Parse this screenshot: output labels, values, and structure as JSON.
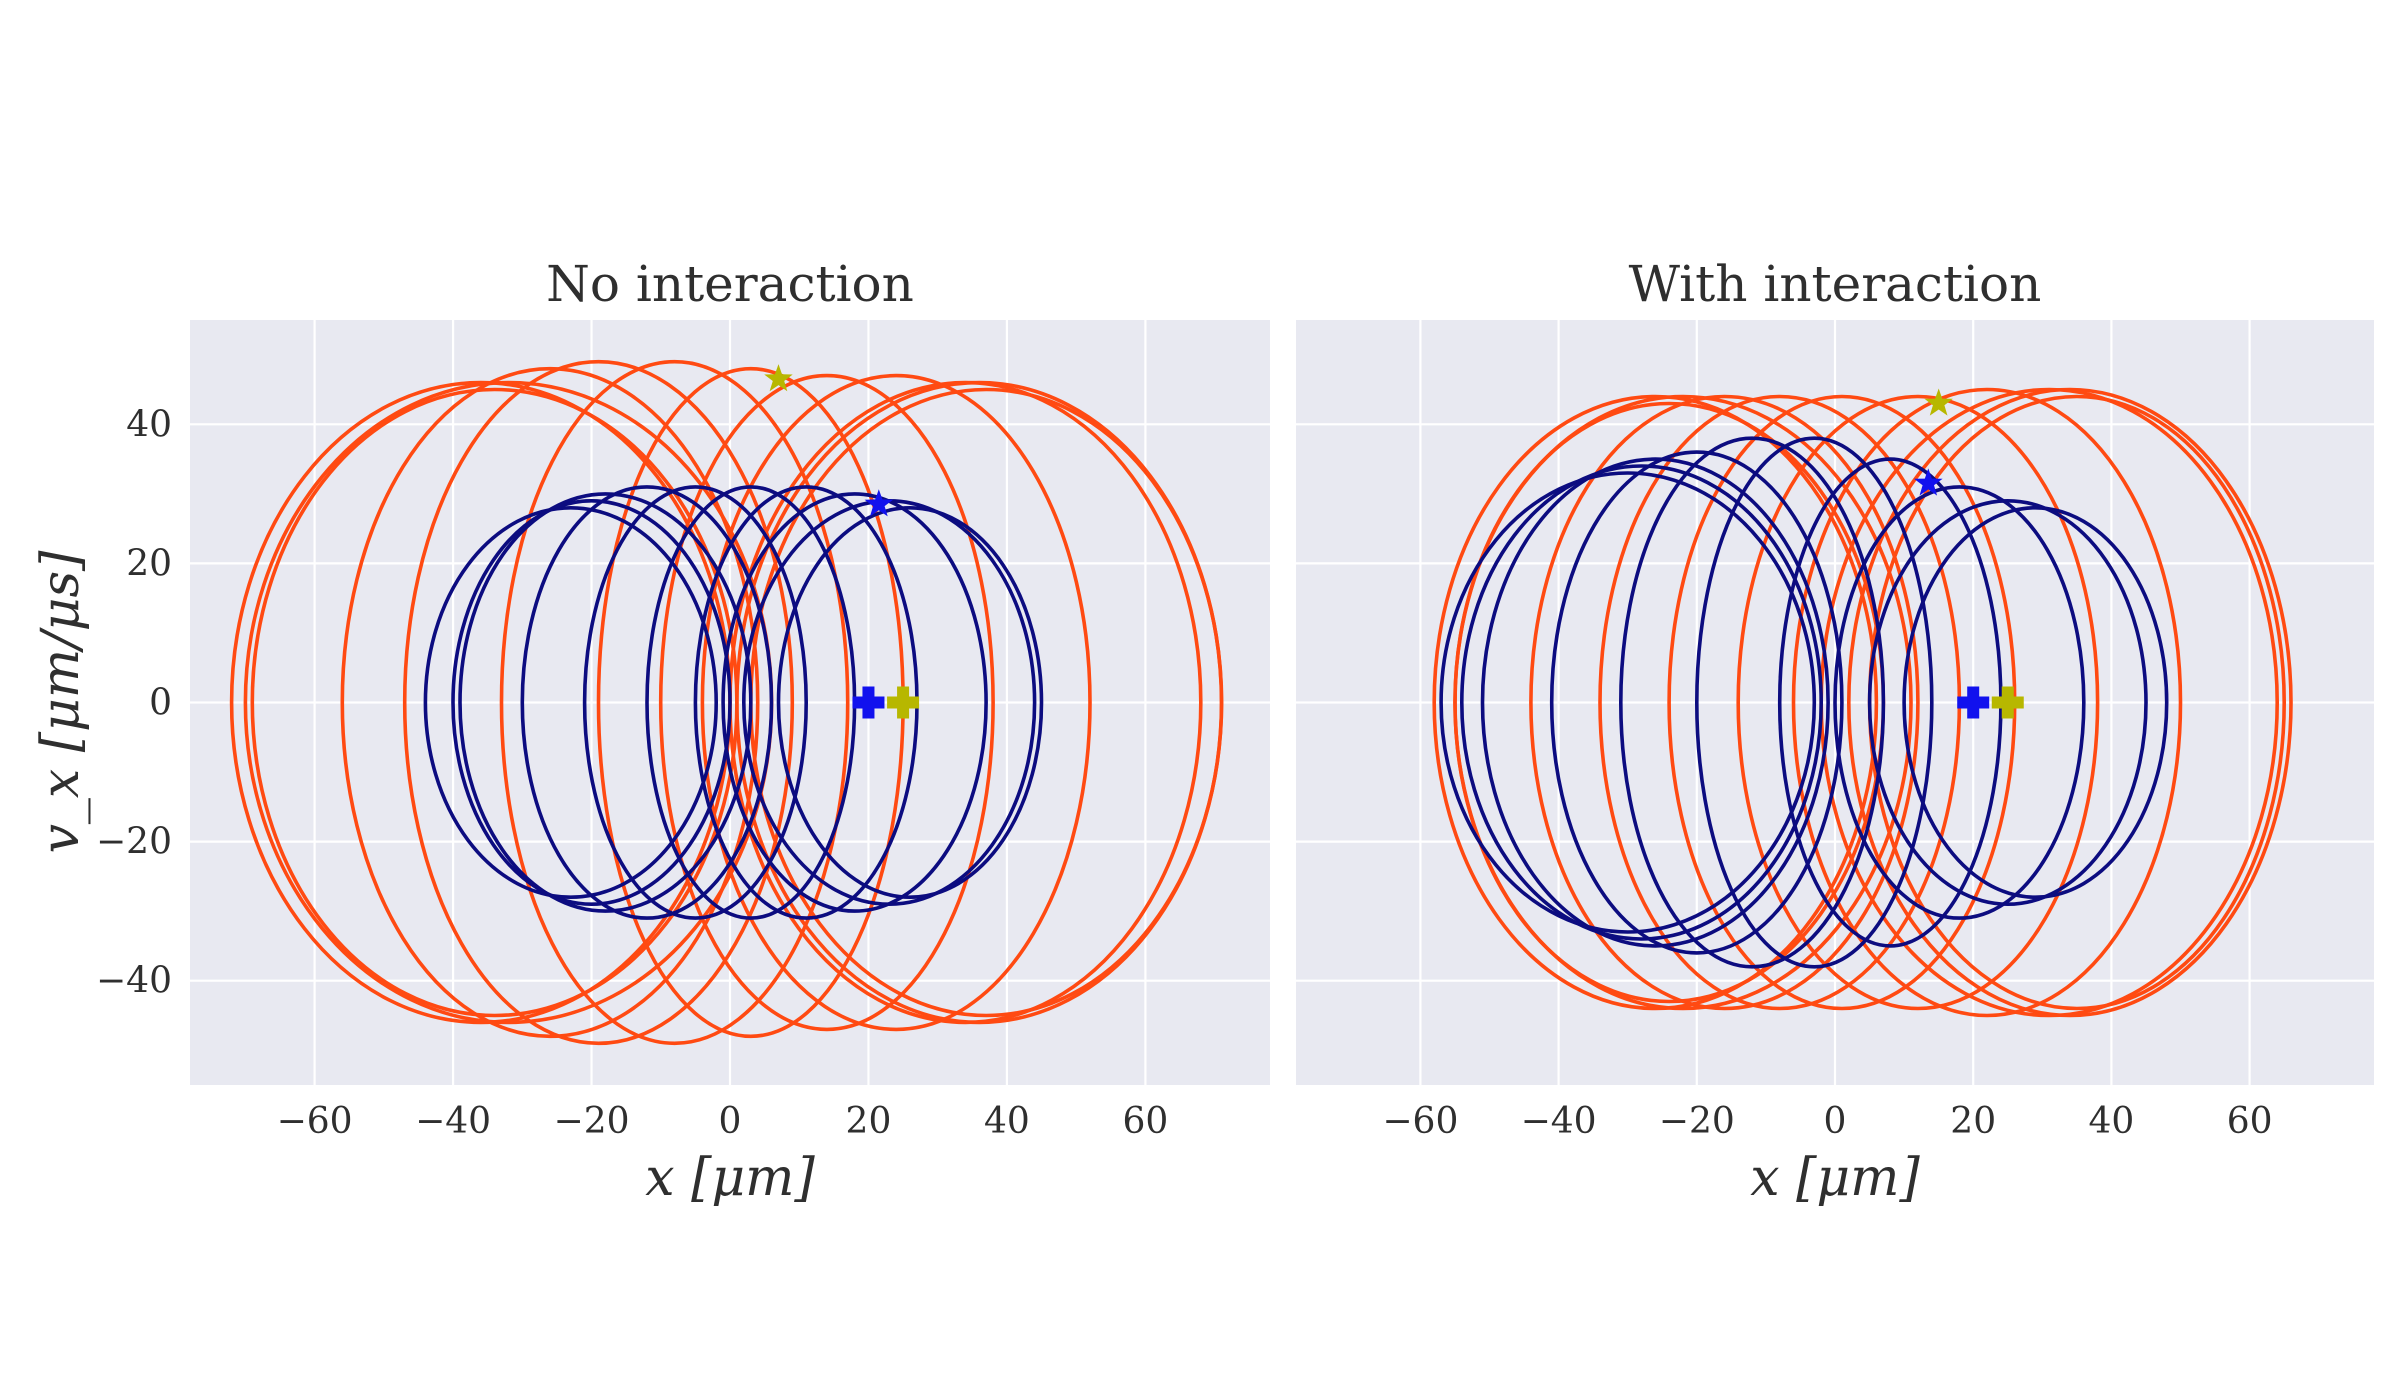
{
  "figure": {
    "background": "#ffffff",
    "plot_background": "#e8e9f1",
    "grid_color": "#ffffff",
    "series_colors": {
      "outer": "#ff4a12",
      "inner": "#0c0c80",
      "marker_yellow": "#b7b700",
      "marker_blue": "#1111ee"
    }
  },
  "chart_data": [
    {
      "type": "line",
      "title": "No interaction",
      "xlabel": "x [μm]",
      "ylabel": "v_x [μm/μs]",
      "xlim": [
        -78,
        78
      ],
      "ylim": [
        -55,
        55
      ],
      "xticks": [
        -60,
        -40,
        -20,
        0,
        20,
        40,
        60
      ],
      "yticks": [
        -40,
        -20,
        0,
        20,
        40
      ],
      "xtick_labels": [
        "−60",
        "−40",
        "−20",
        "0",
        "20",
        "40",
        "60"
      ],
      "ytick_labels": [
        "−40",
        "−20",
        "0",
        "20",
        "40"
      ],
      "grid": true,
      "series": [
        {
          "color": "#ff4a12",
          "style": "phase-space ellipses",
          "ellipses": [
            {
              "center_x": -36,
              "amplitude_x": 36,
              "amplitude_v": 46
            },
            {
              "center_x": -34,
              "amplitude_x": 35,
              "amplitude_v": 45
            },
            {
              "center_x": -32,
              "amplitude_x": 38,
              "amplitude_v": 46
            },
            {
              "center_x": -26,
              "amplitude_x": 30,
              "amplitude_v": 48
            },
            {
              "center_x": -19,
              "amplitude_x": 28,
              "amplitude_v": 49
            },
            {
              "center_x": -8,
              "amplitude_x": 25,
              "amplitude_v": 49
            },
            {
              "center_x": 3,
              "amplitude_x": 22,
              "amplitude_v": 48
            },
            {
              "center_x": 14,
              "amplitude_x": 24,
              "amplitude_v": 47
            },
            {
              "center_x": 24,
              "amplitude_x": 28,
              "amplitude_v": 47
            },
            {
              "center_x": 34,
              "amplitude_x": 34,
              "amplitude_v": 46
            },
            {
              "center_x": 36,
              "amplitude_x": 35,
              "amplitude_v": 46
            },
            {
              "center_x": 37,
              "amplitude_x": 34,
              "amplitude_v": 45
            }
          ],
          "start": {
            "x": 7,
            "v": 46.5
          },
          "end": {
            "x": 25,
            "v": 0
          }
        },
        {
          "color": "#0c0c80",
          "style": "phase-space ellipses",
          "ellipses": [
            {
              "center_x": -23,
              "amplitude_x": 21,
              "amplitude_v": 28
            },
            {
              "center_x": -20,
              "amplitude_x": 20,
              "amplitude_v": 29
            },
            {
              "center_x": -18,
              "amplitude_x": 21,
              "amplitude_v": 30
            },
            {
              "center_x": -12,
              "amplitude_x": 18,
              "amplitude_v": 31
            },
            {
              "center_x": -5,
              "amplitude_x": 16,
              "amplitude_v": 31
            },
            {
              "center_x": 3,
              "amplitude_x": 15,
              "amplitude_v": 31
            },
            {
              "center_x": 11,
              "amplitude_x": 16,
              "amplitude_v": 31
            },
            {
              "center_x": 18,
              "amplitude_x": 19,
              "amplitude_v": 30
            },
            {
              "center_x": 23,
              "amplitude_x": 21,
              "amplitude_v": 29
            },
            {
              "center_x": 26,
              "amplitude_x": 19,
              "amplitude_v": 28
            }
          ],
          "start": {
            "x": 21.5,
            "v": 28.5
          },
          "end": {
            "x": 20,
            "v": 0
          }
        }
      ]
    },
    {
      "type": "line",
      "title": "With interaction",
      "xlabel": "x [μm]",
      "ylabel": "",
      "xlim": [
        -78,
        78
      ],
      "ylim": [
        -55,
        55
      ],
      "xticks": [
        -60,
        -40,
        -20,
        0,
        20,
        40,
        60
      ],
      "yticks": [
        -40,
        -20,
        0,
        20,
        40
      ],
      "xtick_labels": [
        "−60",
        "−40",
        "−20",
        "0",
        "20",
        "40",
        "60"
      ],
      "ytick_labels": [],
      "grid": true,
      "series": [
        {
          "color": "#ff4a12",
          "style": "phase-space ellipses",
          "ellipses": [
            {
              "center_x": -26,
              "amplitude_x": 32,
              "amplitude_v": 44
            },
            {
              "center_x": -24,
              "amplitude_x": 31,
              "amplitude_v": 43
            },
            {
              "center_x": -22,
              "amplitude_x": 33,
              "amplitude_v": 44
            },
            {
              "center_x": -16,
              "amplitude_x": 28,
              "amplitude_v": 44
            },
            {
              "center_x": -8,
              "amplitude_x": 26,
              "amplitude_v": 44
            },
            {
              "center_x": 1,
              "amplitude_x": 25,
              "amplitude_v": 44
            },
            {
              "center_x": 12,
              "amplitude_x": 26,
              "amplitude_v": 44
            },
            {
              "center_x": 22,
              "amplitude_x": 28,
              "amplitude_v": 45
            },
            {
              "center_x": 31,
              "amplitude_x": 33,
              "amplitude_v": 45
            },
            {
              "center_x": 34,
              "amplitude_x": 32,
              "amplitude_v": 45
            },
            {
              "center_x": 35,
              "amplitude_x": 30,
              "amplitude_v": 44
            }
          ],
          "start": {
            "x": 15,
            "v": 43
          },
          "end": {
            "x": 25,
            "v": 0
          }
        },
        {
          "color": "#0c0c80",
          "style": "phase-space ellipses",
          "ellipses": [
            {
              "center_x": -30,
              "amplitude_x": 27,
              "amplitude_v": 33
            },
            {
              "center_x": -28,
              "amplitude_x": 26,
              "amplitude_v": 34
            },
            {
              "center_x": -26,
              "amplitude_x": 25,
              "amplitude_v": 35
            },
            {
              "center_x": -20,
              "amplitude_x": 21,
              "amplitude_v": 36
            },
            {
              "center_x": -12,
              "amplitude_x": 19,
              "amplitude_v": 38
            },
            {
              "center_x": -3,
              "amplitude_x": 17,
              "amplitude_v": 38
            },
            {
              "center_x": 8,
              "amplitude_x": 16,
              "amplitude_v": 35
            },
            {
              "center_x": 18,
              "amplitude_x": 18,
              "amplitude_v": 31
            },
            {
              "center_x": 25,
              "amplitude_x": 20,
              "amplitude_v": 29
            },
            {
              "center_x": 29,
              "amplitude_x": 19,
              "amplitude_v": 28
            }
          ],
          "start": {
            "x": 13.5,
            "v": 31.5
          },
          "end": {
            "x": 20,
            "v": 0
          }
        }
      ]
    }
  ]
}
